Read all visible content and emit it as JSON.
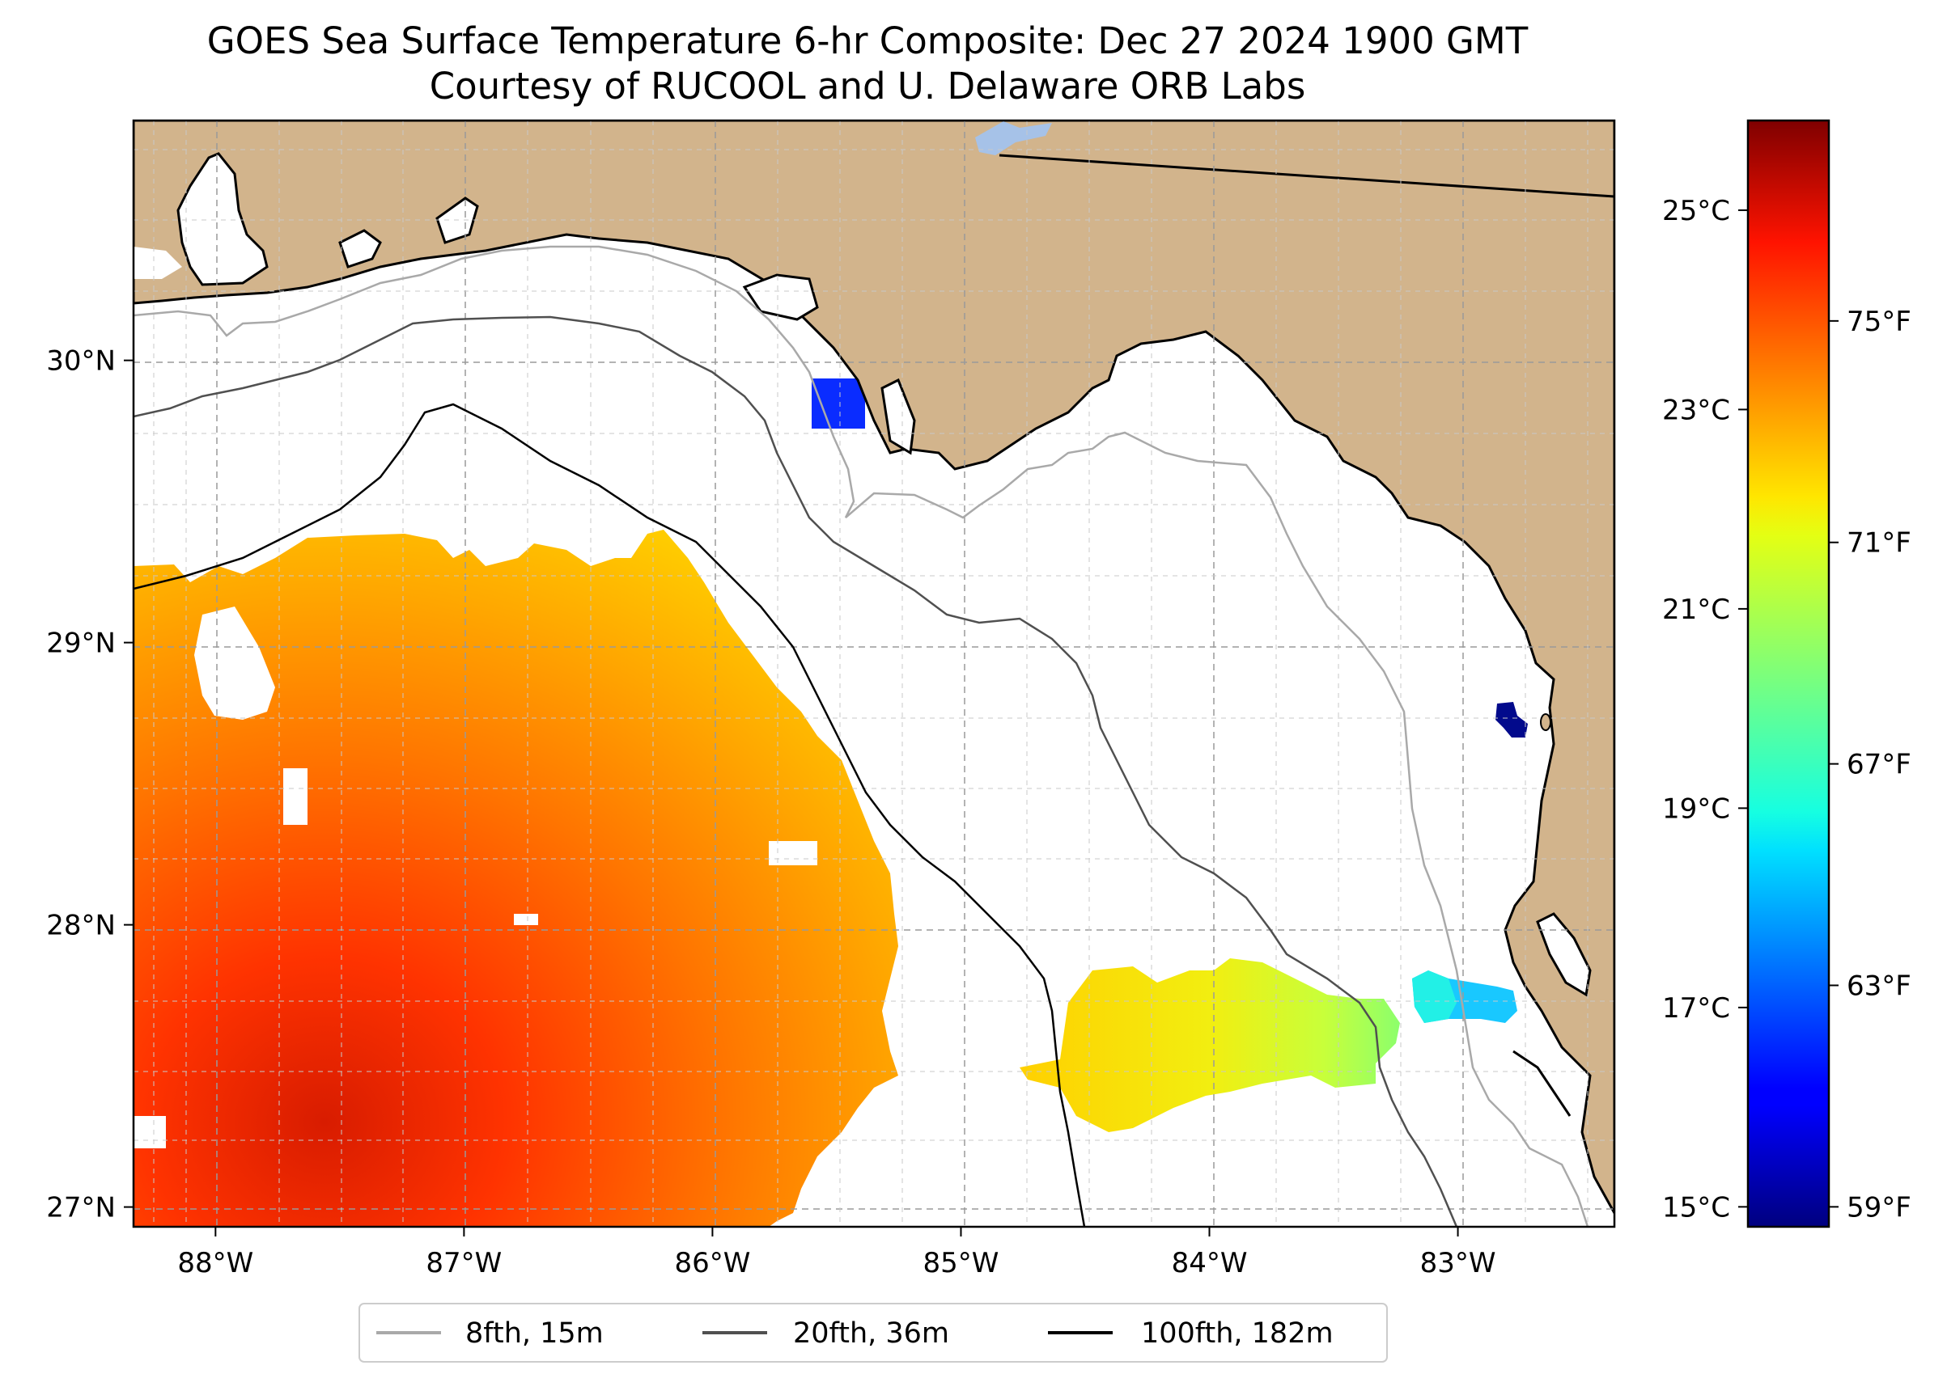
{
  "title": {
    "line1": "GOES Sea Surface Temperature 6-hr Composite: Dec 27 2024 1900 GMT",
    "line2": "Courtesy of RUCOOL and U. Delaware ORB Labs"
  },
  "map": {
    "lon_range": [
      -88.33,
      -82.37
    ],
    "lat_range": [
      26.93,
      30.85
    ],
    "lon_ticks": [
      {
        "value": -88,
        "label": "88°W"
      },
      {
        "value": -87,
        "label": "87°W"
      },
      {
        "value": -86,
        "label": "86°W"
      },
      {
        "value": -85,
        "label": "85°W"
      },
      {
        "value": -84,
        "label": "84°W"
      },
      {
        "value": -83,
        "label": "83°W"
      }
    ],
    "lat_ticks": [
      {
        "value": 27,
        "label": "27°N"
      },
      {
        "value": 28,
        "label": "28°N"
      },
      {
        "value": 29,
        "label": "29°N"
      },
      {
        "value": 30,
        "label": "30°N"
      }
    ],
    "gridlines": true,
    "land_color": "#d2b48c",
    "ocean_color": "#ffffff"
  },
  "legend": {
    "placement": "bottom-center",
    "items": [
      {
        "label": "8fth, 15m",
        "color": "#a9a9a9"
      },
      {
        "label": "20fth, 36m",
        "color": "#505050"
      },
      {
        "label": "100fth, 182m",
        "color": "#000000"
      }
    ]
  },
  "colorbar": {
    "colormap": "jet",
    "celsius_range": [
      14.8,
      25.9
    ],
    "celsius_ticks": [
      {
        "value": 15,
        "label": "15°C"
      },
      {
        "value": 17,
        "label": "17°C"
      },
      {
        "value": 19,
        "label": "19°C"
      },
      {
        "value": 21,
        "label": "21°C"
      },
      {
        "value": 23,
        "label": "23°C"
      },
      {
        "value": 25,
        "label": "25°C"
      }
    ],
    "fahrenheit_ticks": [
      {
        "value": 59,
        "label": "59°F"
      },
      {
        "value": 63,
        "label": "63°F"
      },
      {
        "value": 67,
        "label": "67°F"
      },
      {
        "value": 71,
        "label": "71°F"
      },
      {
        "value": 75,
        "label": "75°F"
      }
    ]
  }
}
